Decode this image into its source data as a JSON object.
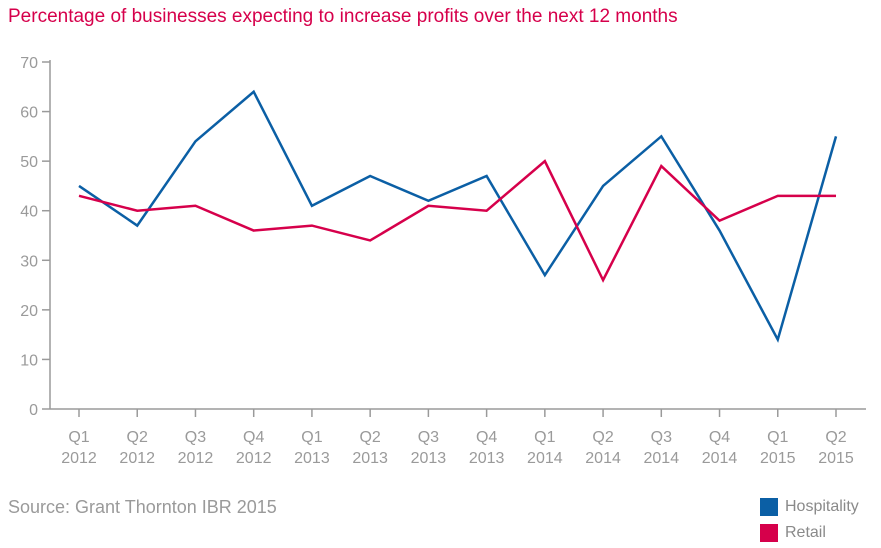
{
  "chart_data": {
    "type": "line",
    "title": "Percentage of businesses expecting to increase profits over the next 12 months",
    "source": "Source: Grant Thornton IBR 2015",
    "categories": [
      [
        "Q1",
        "2012"
      ],
      [
        "Q2",
        "2012"
      ],
      [
        "Q3",
        "2012"
      ],
      [
        "Q4",
        "2012"
      ],
      [
        "Q1",
        "2013"
      ],
      [
        "Q2",
        "2013"
      ],
      [
        "Q3",
        "2013"
      ],
      [
        "Q4",
        "2013"
      ],
      [
        "Q1",
        "2014"
      ],
      [
        "Q2",
        "2014"
      ],
      [
        "Q3",
        "2014"
      ],
      [
        "Q4",
        "2014"
      ],
      [
        "Q1",
        "2015"
      ],
      [
        "Q2",
        "2015"
      ]
    ],
    "ylim": [
      0,
      70
    ],
    "yticks": [
      0,
      10,
      20,
      30,
      40,
      50,
      60,
      70
    ],
    "xlabel": "",
    "ylabel": "",
    "grid": false,
    "legend_position": "bottom-right",
    "series": [
      {
        "name": "Hospitality",
        "color": "#0b5fa5",
        "values": [
          45,
          37,
          54,
          64,
          41,
          47,
          42,
          47,
          27,
          45,
          55,
          36,
          14,
          55
        ]
      },
      {
        "name": "Retail",
        "color": "#d6004b",
        "values": [
          43,
          40,
          41,
          36,
          37,
          34,
          41,
          40,
          50,
          26,
          49,
          38,
          43,
          43
        ]
      }
    ]
  }
}
